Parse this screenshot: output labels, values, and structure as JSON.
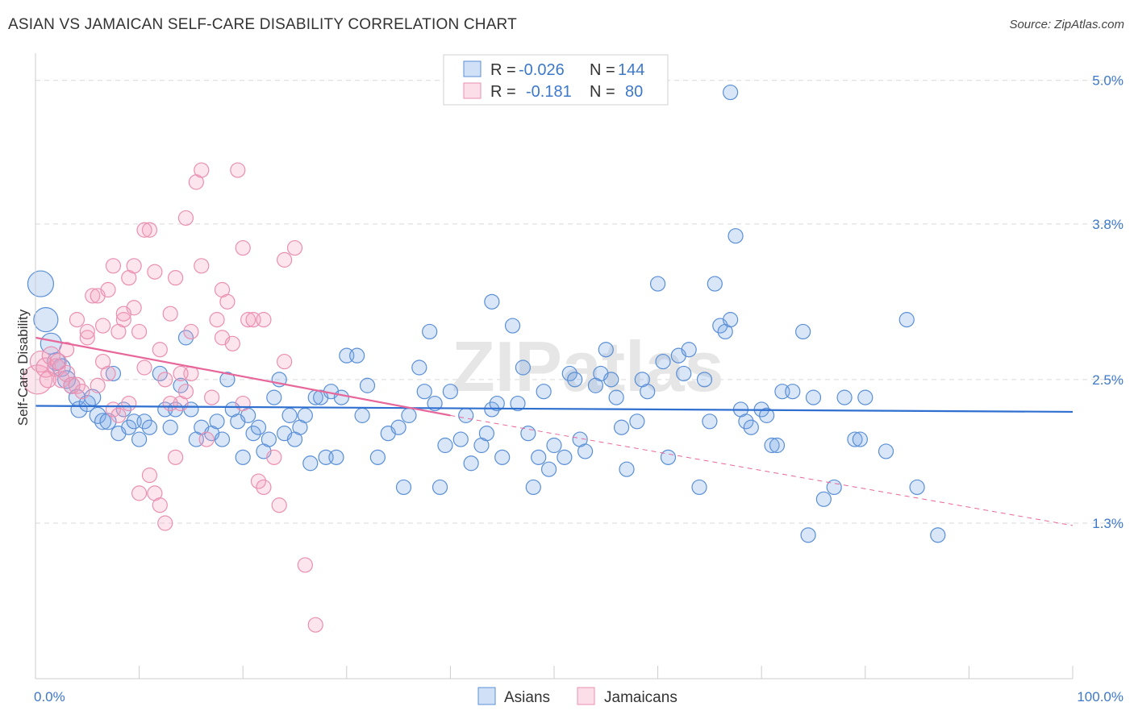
{
  "header": {
    "title": "ASIAN VS JAMAICAN SELF-CARE DISABILITY CORRELATION CHART",
    "source": "Source: ZipAtlas.com"
  },
  "colors": {
    "asian_fill": "rgba(120,165,230,0.28)",
    "asian_stroke": "#5a8fd6",
    "asian_line": "#2f6fd0",
    "jamaican_fill": "rgba(245,160,190,0.28)",
    "jamaican_stroke": "#ea8fb0",
    "jamaican_line": "#e8679a",
    "grid": "#d9d9d9",
    "axis_label": "#3d78c9"
  },
  "legend": {
    "rows": [
      {
        "r_label": "R =",
        "r_value": "-0.026",
        "n_label": "N =",
        "n_value": "144"
      },
      {
        "r_label": "R =",
        "r_value": "-0.181",
        "n_label": "N =",
        "n_value": "80"
      }
    ]
  },
  "bottom_legend": {
    "asians": "Asians",
    "jamaicans": "Jamaicans"
  },
  "watermark": "ZIPatlas",
  "chart_data": {
    "type": "scatter",
    "title": "ASIAN VS JAMAICAN SELF-CARE DISABILITY CORRELATION CHART",
    "xlabel": "",
    "ylabel": "Self-Care Disability",
    "xlim": [
      0,
      100
    ],
    "ylim": [
      0,
      5.2
    ],
    "x_tick_labels": [
      "0.0%",
      "100.0%"
    ],
    "y_ticks": [
      1.3,
      2.5,
      3.8,
      5.0
    ],
    "y_tick_labels": [
      "1.3%",
      "2.5%",
      "3.8%",
      "5.0%"
    ],
    "grid": "horizontal dashed",
    "legend_position": "top-center",
    "series": [
      {
        "name": "Asians",
        "r": -0.026,
        "n": 144,
        "trend": {
          "x": [
            0,
            100
          ],
          "y": [
            2.28,
            2.23
          ]
        },
        "points": [
          [
            0.5,
            3.3,
            16
          ],
          [
            1,
            3.0,
            15
          ],
          [
            1.5,
            2.8,
            13
          ],
          [
            2,
            2.65,
            11
          ],
          [
            2.5,
            2.6,
            11
          ],
          [
            3,
            2.5,
            11
          ],
          [
            3.5,
            2.45,
            10
          ],
          [
            4,
            2.35,
            10
          ],
          [
            4.2,
            2.25,
            10
          ],
          [
            5,
            2.3,
            10
          ],
          [
            5.5,
            2.35,
            10
          ],
          [
            6,
            2.2,
            10
          ],
          [
            6.5,
            2.15,
            10
          ],
          [
            7,
            2.15,
            10
          ],
          [
            7.5,
            2.55,
            9
          ],
          [
            8,
            2.05,
            9
          ],
          [
            8.5,
            2.25,
            9
          ],
          [
            9,
            2.1,
            9
          ],
          [
            9.5,
            2.15,
            9
          ],
          [
            10,
            2.0,
            9
          ],
          [
            10.5,
            2.15,
            9
          ],
          [
            11,
            2.1,
            9
          ],
          [
            12,
            2.55,
            9
          ],
          [
            12.5,
            2.25,
            9
          ],
          [
            13,
            2.1,
            9
          ],
          [
            13.5,
            2.25,
            9
          ],
          [
            14,
            2.45,
            9
          ],
          [
            14.5,
            2.85,
            9
          ],
          [
            15,
            2.25,
            9
          ],
          [
            15.5,
            2.0,
            9
          ],
          [
            16,
            2.1,
            9
          ],
          [
            17,
            2.05,
            9
          ],
          [
            17.5,
            2.15,
            9
          ],
          [
            18,
            2.0,
            9
          ],
          [
            18.5,
            2.5,
            9
          ],
          [
            19,
            2.25,
            9
          ],
          [
            19.5,
            2.15,
            9
          ],
          [
            20,
            1.85,
            9
          ],
          [
            20.5,
            2.2,
            9
          ],
          [
            21,
            2.05,
            9
          ],
          [
            21.5,
            2.1,
            9
          ],
          [
            22,
            1.9,
            9
          ],
          [
            22.5,
            2.0,
            9
          ],
          [
            23,
            2.35,
            9
          ],
          [
            23.5,
            2.5,
            9
          ],
          [
            24,
            2.05,
            9
          ],
          [
            24.5,
            2.2,
            9
          ],
          [
            25,
            2.0,
            9
          ],
          [
            25.5,
            2.1,
            9
          ],
          [
            26,
            2.2,
            9
          ],
          [
            26.5,
            1.8,
            9
          ],
          [
            27,
            2.35,
            9
          ],
          [
            27.5,
            2.35,
            9
          ],
          [
            28,
            1.85,
            9
          ],
          [
            28.5,
            2.4,
            9
          ],
          [
            29,
            1.85,
            9
          ],
          [
            29.5,
            2.35,
            9
          ],
          [
            30,
            2.7,
            9
          ],
          [
            31,
            2.7,
            9
          ],
          [
            31.5,
            2.2,
            9
          ],
          [
            32,
            2.45,
            9
          ],
          [
            33,
            1.85,
            9
          ],
          [
            34,
            2.05,
            9
          ],
          [
            35,
            2.1,
            9
          ],
          [
            35.5,
            1.6,
            9
          ],
          [
            36,
            2.2,
            9
          ],
          [
            37,
            2.6,
            9
          ],
          [
            37.5,
            2.4,
            9
          ],
          [
            38,
            2.9,
            9
          ],
          [
            38.5,
            2.3,
            9
          ],
          [
            39,
            1.6,
            9
          ],
          [
            39.5,
            1.95,
            9
          ],
          [
            40,
            2.4,
            9
          ],
          [
            41,
            2.0,
            9
          ],
          [
            41.5,
            2.2,
            9
          ],
          [
            42,
            1.8,
            9
          ],
          [
            43,
            1.95,
            9
          ],
          [
            43.5,
            2.05,
            9
          ],
          [
            44,
            2.25,
            9
          ],
          [
            44.5,
            2.3,
            9
          ],
          [
            45,
            1.85,
            9
          ],
          [
            46,
            2.95,
            9
          ],
          [
            46.5,
            2.3,
            9
          ],
          [
            47,
            2.6,
            9
          ],
          [
            47.5,
            2.05,
            9
          ],
          [
            48,
            1.6,
            9
          ],
          [
            48.5,
            1.85,
            9
          ],
          [
            49,
            2.4,
            9
          ],
          [
            49.5,
            1.75,
            9
          ],
          [
            50,
            1.95,
            9
          ],
          [
            51,
            1.85,
            9
          ],
          [
            51.5,
            2.55,
            9
          ],
          [
            52,
            2.5,
            9
          ],
          [
            52.5,
            2.0,
            9
          ],
          [
            53,
            1.9,
            9
          ],
          [
            54,
            2.45,
            9
          ],
          [
            54.5,
            2.55,
            9
          ],
          [
            55,
            2.75,
            9
          ],
          [
            55.5,
            2.5,
            9
          ],
          [
            56,
            2.35,
            9
          ],
          [
            56.5,
            2.1,
            9
          ],
          [
            57,
            1.75,
            9
          ],
          [
            58,
            2.15,
            9
          ],
          [
            58.5,
            2.5,
            9
          ],
          [
            59,
            2.4,
            9
          ],
          [
            60,
            3.3,
            9
          ],
          [
            60.5,
            2.65,
            9
          ],
          [
            61,
            1.85,
            9
          ],
          [
            62,
            2.7,
            9
          ],
          [
            62.5,
            2.55,
            9
          ],
          [
            63,
            2.75,
            9
          ],
          [
            64,
            1.6,
            9
          ],
          [
            64.5,
            2.5,
            9
          ],
          [
            65,
            2.15,
            9
          ],
          [
            66,
            2.95,
            9
          ],
          [
            66.5,
            2.9,
            9
          ],
          [
            67,
            3.0,
            9
          ],
          [
            68,
            2.25,
            9
          ],
          [
            68.5,
            2.15,
            9
          ],
          [
            69,
            2.1,
            9
          ],
          [
            70,
            2.25,
            9
          ],
          [
            70.5,
            2.2,
            9
          ],
          [
            71,
            1.95,
            9
          ],
          [
            71.5,
            1.95,
            9
          ],
          [
            72,
            2.4,
            9
          ],
          [
            73,
            2.4,
            9
          ],
          [
            74,
            2.9,
            9
          ],
          [
            74.5,
            1.2,
            9
          ],
          [
            75,
            2.35,
            9
          ],
          [
            76,
            1.5,
            9
          ],
          [
            77,
            1.6,
            9
          ],
          [
            78,
            2.35,
            9
          ],
          [
            79,
            2.0,
            9
          ],
          [
            79.5,
            2.0,
            9
          ],
          [
            80,
            2.35,
            9
          ],
          [
            82,
            1.9,
            9
          ],
          [
            84,
            3.0,
            9
          ],
          [
            85,
            1.6,
            9
          ],
          [
            87,
            1.2,
            9
          ],
          [
            67.5,
            3.7,
            9
          ],
          [
            67,
            4.9,
            9
          ],
          [
            65.5,
            3.3,
            9
          ],
          [
            44,
            3.15,
            9
          ]
        ]
      },
      {
        "name": "Jamaicans",
        "r": -0.181,
        "n": 80,
        "trend": {
          "x": [
            0,
            40
          ],
          "y": [
            2.85,
            2.2
          ]
        },
        "trend_dashed": {
          "x": [
            40,
            100
          ],
          "y": [
            2.2,
            1.28
          ]
        },
        "points": [
          [
            0.2,
            2.5,
            18
          ],
          [
            0.5,
            2.65,
            13
          ],
          [
            1,
            2.6,
            12
          ],
          [
            1.5,
            2.7,
            11
          ],
          [
            2,
            2.6,
            11
          ],
          [
            2.5,
            2.5,
            10
          ],
          [
            3,
            2.55,
            10
          ],
          [
            3.5,
            2.45,
            10
          ],
          [
            4,
            2.45,
            10
          ],
          [
            4.5,
            2.4,
            9
          ],
          [
            5,
            2.85,
            9
          ],
          [
            5.5,
            3.2,
            9
          ],
          [
            6,
            3.2,
            9
          ],
          [
            6.5,
            2.65,
            9
          ],
          [
            7,
            2.55,
            9
          ],
          [
            7.5,
            2.25,
            9
          ],
          [
            8,
            2.9,
            9
          ],
          [
            8.5,
            3.0,
            9
          ],
          [
            9,
            3.35,
            9
          ],
          [
            9.5,
            3.1,
            9
          ],
          [
            10,
            2.9,
            9
          ],
          [
            10.5,
            2.6,
            9
          ],
          [
            11,
            3.75,
            9
          ],
          [
            11.5,
            3.4,
            9
          ],
          [
            12,
            2.75,
            9
          ],
          [
            12.5,
            2.5,
            9
          ],
          [
            13,
            3.05,
            9
          ],
          [
            13.5,
            1.85,
            9
          ],
          [
            14,
            2.3,
            9
          ],
          [
            14.5,
            2.4,
            9
          ],
          [
            15,
            2.55,
            9
          ],
          [
            15.5,
            4.15,
            9
          ],
          [
            16,
            4.25,
            9
          ],
          [
            16.5,
            2.0,
            9
          ],
          [
            17,
            2.35,
            9
          ],
          [
            17.5,
            3.0,
            9
          ],
          [
            18,
            2.85,
            9
          ],
          [
            18.5,
            3.15,
            9
          ],
          [
            19,
            2.8,
            9
          ],
          [
            19.5,
            4.25,
            9
          ],
          [
            20,
            3.6,
            9
          ],
          [
            20.5,
            3.0,
            9
          ],
          [
            21,
            3.0,
            9
          ],
          [
            21.5,
            1.65,
            9
          ],
          [
            22,
            1.6,
            9
          ],
          [
            23,
            1.85,
            9
          ],
          [
            23.5,
            1.45,
            9
          ],
          [
            24,
            2.65,
            9
          ],
          [
            25,
            3.6,
            9
          ],
          [
            26,
            0.95,
            9
          ],
          [
            27,
            0.45,
            9
          ],
          [
            3,
            2.75,
            9
          ],
          [
            4,
            3.0,
            9
          ],
          [
            5,
            2.9,
            9
          ],
          [
            6,
            2.45,
            9
          ],
          [
            6.5,
            2.95,
            9
          ],
          [
            7,
            3.25,
            9
          ],
          [
            8,
            2.2,
            9
          ],
          [
            9,
            2.3,
            9
          ],
          [
            9.5,
            3.45,
            9
          ],
          [
            10,
            1.55,
            9
          ],
          [
            10.5,
            3.75,
            9
          ],
          [
            11,
            1.7,
            9
          ],
          [
            11.5,
            1.55,
            9
          ],
          [
            12,
            1.45,
            9
          ],
          [
            12.5,
            1.3,
            9
          ],
          [
            13,
            2.3,
            9
          ],
          [
            13.5,
            3.35,
            9
          ],
          [
            14,
            2.55,
            9
          ],
          [
            14.5,
            3.85,
            9
          ],
          [
            15,
            2.9,
            9
          ],
          [
            16,
            3.45,
            9
          ],
          [
            18,
            3.25,
            9
          ],
          [
            20,
            2.3,
            9
          ],
          [
            22,
            3.0,
            9
          ],
          [
            24,
            3.5,
            9
          ],
          [
            7.5,
            3.45,
            9
          ],
          [
            8.5,
            3.05,
            9
          ],
          [
            1.2,
            2.5,
            10
          ],
          [
            2.2,
            2.65,
            10
          ]
        ]
      }
    ]
  }
}
